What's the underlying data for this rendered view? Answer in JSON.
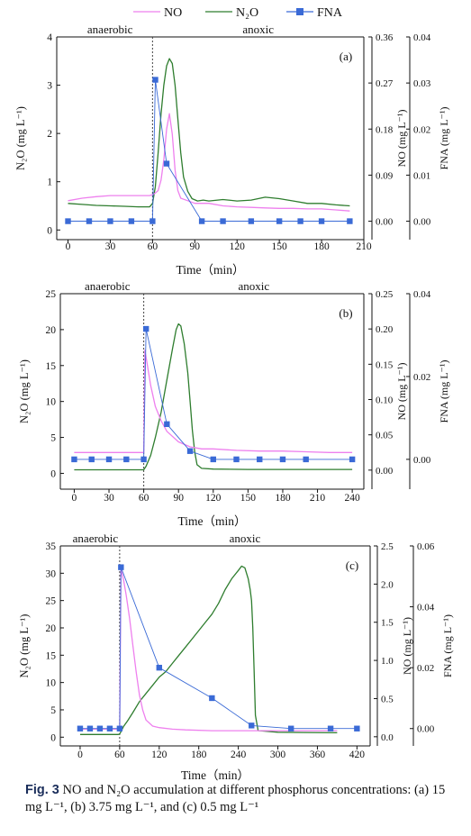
{
  "legend": {
    "items": [
      {
        "label": "NO",
        "color": "#ee80ee",
        "marker": "line"
      },
      {
        "label": "N₂O",
        "color": "#2e7d2e",
        "marker": "line"
      },
      {
        "label": "FNA",
        "color": "#3a6ad6",
        "marker": "line-square"
      }
    ]
  },
  "caption": {
    "label": "Fig. 3",
    "text": "NO and N₂O accumulation at different phosphorus concentrations: (a) 15 mg L⁻¹, (b) 3.75 mg L⁻¹, and (c) 0.5 mg L⁻¹"
  },
  "chart_data": [
    {
      "type": "line",
      "panel_label": "(a)",
      "phase_labels": [
        "anaerobic",
        "anoxic"
      ],
      "phase_boundary_x": 60,
      "xlabel": "Time（min）",
      "xlim": [
        -8,
        210
      ],
      "xticks": [
        0,
        30,
        60,
        90,
        120,
        150,
        180,
        210
      ],
      "left_axis": {
        "label": "N₂O (mg L⁻¹)",
        "lim": [
          -0.2,
          4
        ],
        "ticks": [
          0,
          1,
          2,
          3,
          4
        ]
      },
      "right1_axis": {
        "label": "NO (mg L⁻¹)",
        "lim": [
          -0.036,
          0.36
        ],
        "ticks": [
          0.0,
          0.09,
          0.18,
          0.27,
          0.36
        ],
        "tick_labels": [
          "0.00",
          "0.09",
          "0.18",
          "0.27",
          "0.36"
        ]
      },
      "right2_axis": {
        "label": "FNA (mg L⁻¹)",
        "lim": [
          -0.004,
          0.04
        ],
        "ticks": [
          0.0,
          0.01,
          0.02,
          0.03,
          0.04
        ],
        "tick_labels": [
          "0.00",
          "0.01",
          "0.02",
          "0.03",
          "0.04"
        ]
      },
      "series": [
        {
          "name": "N₂O",
          "axis": "left",
          "x": [
            0,
            10,
            20,
            30,
            40,
            50,
            58,
            60,
            62,
            64,
            66,
            68,
            70,
            72,
            74,
            76,
            78,
            80,
            82,
            85,
            88,
            92,
            96,
            100,
            110,
            120,
            130,
            140,
            150,
            160,
            170,
            180,
            190,
            200
          ],
          "y": [
            0.55,
            0.53,
            0.51,
            0.5,
            0.49,
            0.48,
            0.48,
            0.55,
            0.9,
            1.6,
            2.4,
            3.0,
            3.4,
            3.55,
            3.45,
            3.0,
            2.3,
            1.6,
            1.1,
            0.8,
            0.65,
            0.6,
            0.62,
            0.6,
            0.63,
            0.6,
            0.62,
            0.68,
            0.65,
            0.6,
            0.55,
            0.55,
            0.52,
            0.5
          ]
        },
        {
          "name": "NO",
          "axis": "right1",
          "x": [
            0,
            10,
            20,
            30,
            40,
            50,
            58,
            60,
            62,
            64,
            66,
            68,
            70,
            72,
            74,
            76,
            78,
            80,
            85,
            90,
            100,
            110,
            120,
            130,
            140,
            150,
            160,
            170,
            180,
            190,
            200
          ],
          "y": [
            0.04,
            0.045,
            0.048,
            0.05,
            0.05,
            0.05,
            0.05,
            0.052,
            0.055,
            0.06,
            0.08,
            0.12,
            0.18,
            0.21,
            0.17,
            0.1,
            0.06,
            0.045,
            0.04,
            0.035,
            0.035,
            0.03,
            0.028,
            0.027,
            0.026,
            0.025,
            0.025,
            0.024,
            0.024,
            0.022,
            0.02
          ]
        },
        {
          "name": "FNA",
          "axis": "right2",
          "x": [
            0,
            15,
            30,
            45,
            60,
            62,
            70,
            95,
            110,
            130,
            150,
            165,
            180,
            200
          ],
          "y": [
            0.0,
            0.0,
            0.0,
            0.0,
            0.0,
            0.0307,
            0.0125,
            0.0,
            0.0,
            0.0,
            0.0,
            0.0,
            0.0,
            0.0
          ]
        }
      ]
    },
    {
      "type": "line",
      "panel_label": "(b)",
      "phase_labels": [
        "anaerobic",
        "anoxic"
      ],
      "phase_boundary_x": 60,
      "xlabel": "Time（min）",
      "xlim": [
        -12,
        250
      ],
      "xticks": [
        0,
        30,
        60,
        90,
        120,
        150,
        180,
        210,
        240
      ],
      "left_axis": {
        "label": "N₂O (mg L⁻¹)",
        "lim": [
          -2.2,
          25
        ],
        "ticks": [
          0,
          5,
          10,
          15,
          20,
          25
        ]
      },
      "right1_axis": {
        "label": "NO (mg L⁻¹)",
        "lim": [
          -0.027,
          0.25
        ],
        "ticks": [
          0.0,
          0.05,
          0.1,
          0.15,
          0.2,
          0.25
        ],
        "tick_labels": [
          "0.00",
          "0.05",
          "0.10",
          "0.15",
          "0.20",
          "0.25"
        ]
      },
      "right2_axis": {
        "label": "FNA (mg L⁻¹)",
        "lim": [
          -0.0072,
          0.04
        ],
        "ticks": [
          0.0,
          0.02,
          0.04
        ],
        "tick_labels": [
          "0.00",
          "0.02",
          "0.04"
        ]
      },
      "series": [
        {
          "name": "N₂O",
          "axis": "left",
          "x": [
            0,
            20,
            40,
            60,
            62,
            66,
            70,
            75,
            80,
            85,
            88,
            90,
            92,
            95,
            98,
            100,
            102,
            104,
            106,
            110,
            120,
            150,
            180,
            210,
            240
          ],
          "y": [
            0.5,
            0.5,
            0.5,
            0.5,
            1.0,
            2.5,
            5,
            8.5,
            13,
            17.5,
            20,
            20.8,
            20.5,
            18,
            14,
            10,
            6,
            3,
            1.2,
            0.7,
            0.6,
            0.55,
            0.55,
            0.55,
            0.55
          ]
        },
        {
          "name": "NO",
          "axis": "right1",
          "x": [
            0,
            30,
            58,
            60,
            61,
            63,
            66,
            70,
            75,
            80,
            90,
            100,
            110,
            120,
            140,
            160,
            180,
            200,
            220,
            240
          ],
          "y": [
            0.025,
            0.025,
            0.025,
            0.025,
            0.17,
            0.15,
            0.12,
            0.09,
            0.07,
            0.055,
            0.04,
            0.033,
            0.03,
            0.03,
            0.028,
            0.027,
            0.027,
            0.026,
            0.025,
            0.025
          ]
        },
        {
          "name": "FNA",
          "axis": "right2",
          "x": [
            0,
            15,
            30,
            45,
            60,
            62,
            80,
            100,
            120,
            140,
            160,
            180,
            200,
            240
          ],
          "y": [
            0.0,
            0.0,
            0.0,
            0.0,
            0.0,
            0.0315,
            0.0085,
            0.002,
            0.0,
            0.0,
            0.0,
            0.0,
            0.0,
            0.0
          ]
        }
      ]
    },
    {
      "type": "line",
      "panel_label": "(c)",
      "phase_labels": [
        "anaerobic",
        "anoxic"
      ],
      "phase_boundary_x": 60,
      "xlabel": "Time（min）",
      "xlim": [
        -30,
        440
      ],
      "xticks": [
        0,
        60,
        120,
        180,
        240,
        300,
        360,
        420
      ],
      "left_axis": {
        "label": "N₂O (mg L⁻¹)",
        "lim": [
          -1.6,
          35
        ],
        "ticks": [
          0,
          5,
          10,
          15,
          20,
          25,
          30,
          35
        ]
      },
      "right1_axis": {
        "label": "NO (mg L⁻¹)",
        "lim": [
          -0.12,
          2.5
        ],
        "ticks": [
          0.0,
          0.5,
          1.0,
          1.5,
          2.0,
          2.5
        ],
        "tick_labels": [
          "0.0",
          "0.5",
          "1.0",
          "1.5",
          "2.0",
          "2.5"
        ]
      },
      "right2_axis": {
        "label": "FNA (mg L⁻¹)",
        "lim": [
          -0.0057,
          0.06
        ],
        "ticks": [
          0.0,
          0.02,
          0.04,
          0.06
        ],
        "tick_labels": [
          "0.00",
          "0.02",
          "0.04",
          "0.06"
        ]
      },
      "series": [
        {
          "name": "N₂O",
          "axis": "left",
          "x": [
            0,
            30,
            58,
            60,
            62,
            66,
            72,
            80,
            90,
            100,
            110,
            120,
            130,
            140,
            150,
            160,
            170,
            180,
            190,
            200,
            210,
            220,
            230,
            240,
            245,
            250,
            255,
            258,
            260,
            262,
            264,
            266,
            270,
            300,
            340,
            390
          ],
          "y": [
            0.5,
            0.5,
            0.5,
            0.6,
            1.0,
            2.0,
            3.0,
            4.5,
            6.5,
            8.0,
            9.5,
            11,
            12,
            13.5,
            15,
            16.5,
            18,
            19.5,
            21,
            22.5,
            24.5,
            27,
            29,
            30.5,
            31.3,
            31,
            29,
            27,
            25,
            20,
            12,
            4,
            1.2,
            0.9,
            0.85,
            0.8
          ]
        },
        {
          "name": "NO",
          "axis": "right1",
          "x": [
            0,
            30,
            58,
            60,
            62,
            66,
            70,
            75,
            80,
            85,
            90,
            95,
            100,
            110,
            120,
            140,
            160,
            200,
            260,
            320,
            390
          ],
          "y": [
            0.1,
            0.1,
            0.1,
            0.1,
            2.2,
            2.05,
            1.85,
            1.55,
            1.2,
            0.85,
            0.55,
            0.35,
            0.22,
            0.14,
            0.12,
            0.1,
            0.09,
            0.08,
            0.08,
            0.08,
            0.08
          ]
        },
        {
          "name": "FNA",
          "axis": "right2",
          "x": [
            0,
            15,
            30,
            45,
            60,
            62,
            120,
            200,
            260,
            320,
            380,
            420
          ],
          "y": [
            0.0,
            0.0,
            0.0,
            0.0,
            0.0,
            0.053,
            0.02,
            0.01,
            0.001,
            0.0,
            0.0,
            0.0
          ]
        }
      ]
    }
  ]
}
